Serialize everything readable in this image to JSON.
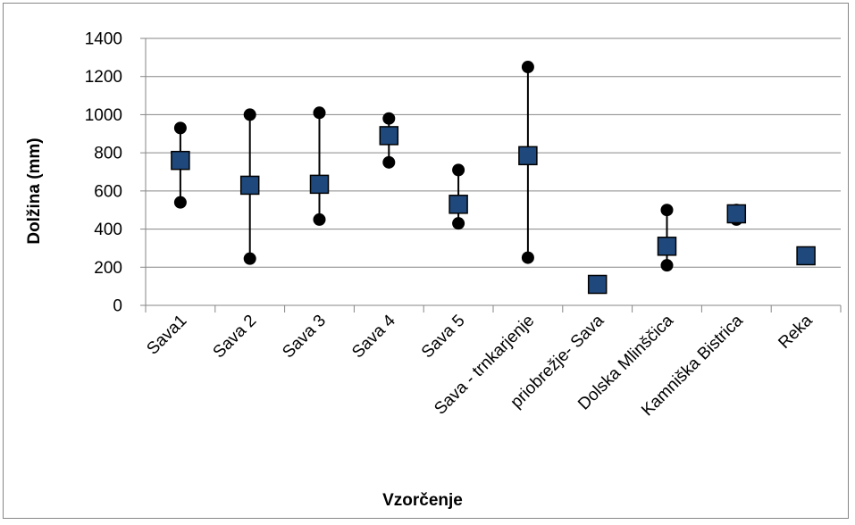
{
  "chart_data": {
    "type": "scatter",
    "title": "",
    "xlabel": "Vzorčenje",
    "ylabel": "Dolžina (mm)",
    "ylim": [
      0,
      1400
    ],
    "yticks": [
      0,
      200,
      400,
      600,
      800,
      1000,
      1200,
      1400
    ],
    "grid": true,
    "legend": "none",
    "categories": [
      "Sava1",
      "Sava 2",
      "Sava 3",
      "Sava 4",
      "Sava 5",
      "Sava  - trnkarjenje",
      "priobrežje- Sava",
      "Dolska Mlinščica",
      "Kamniška Bistrica",
      "Reka"
    ],
    "series": [
      {
        "marker": "square",
        "values": [
          760,
          630,
          635,
          890,
          530,
          785,
          110,
          310,
          480,
          260
        ]
      },
      {
        "marker": "circle",
        "values": [
          930,
          1000,
          1010,
          980,
          710,
          1250,
          120,
          500,
          500,
          260
        ]
      },
      {
        "marker": "circle",
        "values": [
          540,
          245,
          450,
          750,
          430,
          250,
          100,
          210,
          450,
          260
        ]
      }
    ],
    "colors": {
      "square_fill": "#1F497D",
      "circle_fill": "#000000",
      "grid": "#868686"
    }
  }
}
